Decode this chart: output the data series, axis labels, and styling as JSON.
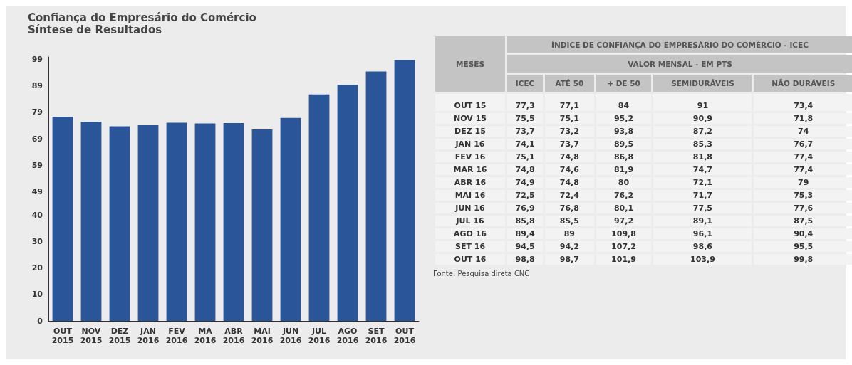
{
  "chart_data": [
    {
      "type": "bar",
      "title": "Confiança do Empresário do Comércio",
      "subtitle": "Síntese de Resultados",
      "categories": [
        "OUT\n2015",
        "NOV\n2015",
        "DEZ\n2015",
        "JAN\n2016",
        "FEV\n2016",
        "MA\n2016",
        "ABR\n2016",
        "MAI\n2016",
        "JUN\n2016",
        "JUL\n2016",
        "AGO\n2016",
        "SET\n2016",
        "OUT\n2016"
      ],
      "values": [
        77.3,
        75.5,
        73.7,
        74.1,
        75.1,
        74.8,
        74.9,
        72.5,
        76.9,
        85.8,
        89.4,
        94.5,
        98.8
      ],
      "color": "#2a5599",
      "ylim": [
        0,
        100
      ],
      "yticks": [
        0,
        10,
        20,
        30,
        40,
        49,
        59,
        69,
        79,
        89,
        99
      ],
      "grid": false
    },
    {
      "type": "other",
      "title": "ÍNDICE DE CONFIANÇA DO EMPRESÁRIO DO COMÉRCIO - ICEC",
      "subtitle": "VALOR MENSAL - EM PTS",
      "xlabel": "MESES",
      "categories": [
        "OUT 15",
        "NOV 15",
        "DEZ 15",
        "JAN 16",
        "FEV 16",
        "MAR 16",
        "ABR 16",
        "MAI 16",
        "JUN 16",
        "JUL 16",
        "AGO 16",
        "SET 16",
        "OUT 16"
      ],
      "series": [
        {
          "name": "ICEC",
          "values": [
            77.3,
            75.5,
            73.7,
            74.1,
            75.1,
            74.8,
            74.9,
            72.5,
            76.9,
            85.8,
            89.4,
            94.5,
            98.8
          ],
          "value_labels": [
            "77,3",
            "75,5",
            "73,7",
            "74,1",
            "75,1",
            "74,8",
            "74,9",
            "72,5",
            "76,9",
            "85,8",
            "89,4",
            "94,5",
            "98,8"
          ]
        },
        {
          "name": "ATÉ 50",
          "values": [
            77.1,
            75.1,
            73.2,
            73.7,
            74.8,
            74.6,
            74.8,
            72.4,
            76.8,
            85.5,
            89,
            94.2,
            98.7
          ],
          "value_labels": [
            "77,1",
            "75,1",
            "73,2",
            "73,7",
            "74,8",
            "74,6",
            "74,8",
            "72,4",
            "76,8",
            "85,5",
            "89",
            "94,2",
            "98,7"
          ]
        },
        {
          "name": "+ DE 50",
          "values": [
            84,
            95.2,
            93.8,
            89.5,
            86.8,
            81.9,
            80,
            76.2,
            80.1,
            97.2,
            109.8,
            107.2,
            101.9
          ],
          "value_labels": [
            "84",
            "95,2",
            "93,8",
            "89,5",
            "86,8",
            "81,9",
            "80",
            "76,2",
            "80,1",
            "97,2",
            "109,8",
            "107,2",
            "101,9"
          ]
        },
        {
          "name": "SEMIDURÁVEIS",
          "values": [
            91,
            90.9,
            87.2,
            85.3,
            81.8,
            74.7,
            72.1,
            71.7,
            77.5,
            89.1,
            96.1,
            98.6,
            103.9
          ],
          "value_labels": [
            "91",
            "90,9",
            "87,2",
            "85,3",
            "81,8",
            "74,7",
            "72,1",
            "71,7",
            "77,5",
            "89,1",
            "96,1",
            "98,6",
            "103,9"
          ]
        },
        {
          "name": "NÃO DURÁVEIS",
          "values": [
            73.4,
            71.8,
            74,
            76.7,
            77.4,
            77.4,
            79,
            75.3,
            77.6,
            87.5,
            90.4,
            95.5,
            99.8
          ],
          "value_labels": [
            "73,4",
            "71,8",
            "74",
            "76,7",
            "77,4",
            "77,4",
            "79",
            "75,3",
            "77,6",
            "87,5",
            "90,4",
            "95,5",
            "99,8"
          ]
        }
      ],
      "annotations": [
        "Fonte: Pesquisa direta CNC"
      ]
    }
  ]
}
